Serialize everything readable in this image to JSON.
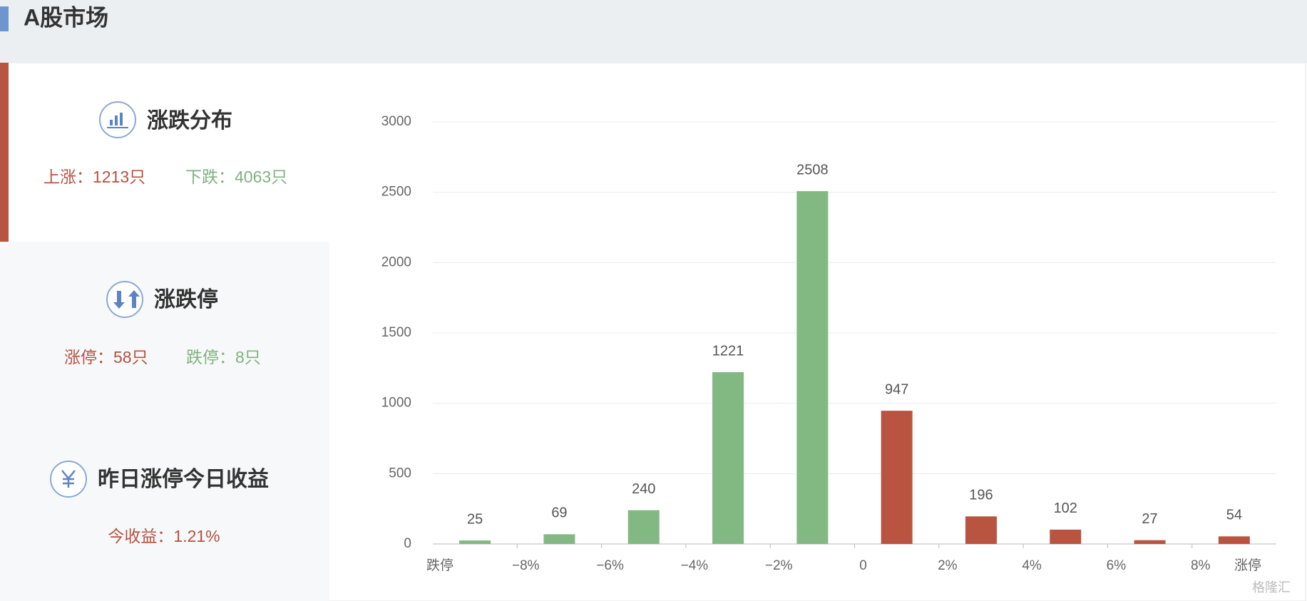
{
  "header": {
    "title": "A股市场"
  },
  "panels": [
    {
      "title": "涨跌分布",
      "items": [
        "上涨：1213只",
        "下跌：4063只"
      ]
    },
    {
      "title": "涨跌停",
      "items": [
        "涨停：58只",
        "跌停：8只"
      ]
    },
    {
      "title": "昨日涨停今日收益",
      "items": [
        "今收益：1.21%"
      ]
    }
  ],
  "watermark": "格隆汇",
  "chart_data": {
    "type": "bar",
    "x_labels": [
      "跌停",
      "−8%",
      "−6%",
      "−4%",
      "−2%",
      "0",
      "2%",
      "4%",
      "6%",
      "8%",
      "涨停"
    ],
    "values": [
      25,
      69,
      240,
      1221,
      2508,
      947,
      196,
      102,
      27,
      54
    ],
    "colors": [
      "#82b983",
      "#82b983",
      "#82b983",
      "#82b983",
      "#82b983",
      "#b85440",
      "#b85440",
      "#b85440",
      "#b85440",
      "#b85440"
    ],
    "ylim": [
      0,
      3000
    ],
    "yticks": [
      0,
      500,
      1000,
      1500,
      2000,
      2500,
      3000
    ],
    "grid": true
  }
}
